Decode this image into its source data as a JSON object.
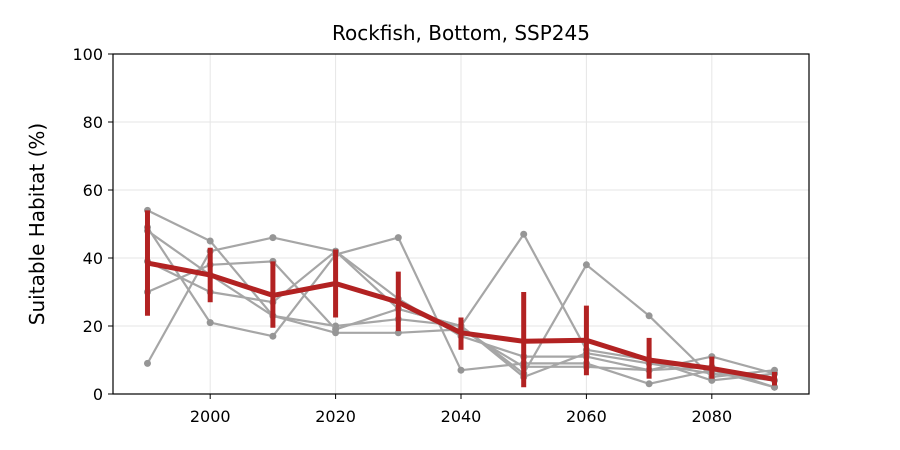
{
  "chart_data": {
    "type": "line",
    "title": "Rockfish, Bottom, SSP245",
    "xlabel": "",
    "ylabel": "Suitable Habitat (%)",
    "x": [
      1990,
      2000,
      2010,
      2020,
      2030,
      2040,
      2050,
      2060,
      2070,
      2080,
      2090
    ],
    "xlim": [
      1984.5,
      2095.5
    ],
    "ylim": [
      0,
      100
    ],
    "xticks": [
      2000,
      2020,
      2040,
      2060,
      2080
    ],
    "yticks": [
      0,
      20,
      40,
      60,
      80,
      100
    ],
    "grid": true,
    "series": [
      {
        "values": [
          54,
          45,
          23,
          20,
          22,
          20,
          5,
          12,
          9,
          6,
          4
        ],
        "color": "#a6a6a6"
      },
      {
        "values": [
          49,
          21,
          17,
          41,
          46,
          7,
          9,
          9,
          3,
          7,
          2
        ],
        "color": "#a6a6a6"
      },
      {
        "values": [
          30,
          38,
          39,
          19,
          25,
          20,
          47,
          13,
          10,
          4,
          6
        ],
        "color": "#a6a6a6"
      },
      {
        "values": [
          9,
          42,
          46,
          42,
          28,
          17,
          11,
          11,
          7,
          11,
          6
        ],
        "color": "#a6a6a6"
      },
      {
        "values": [
          39,
          30,
          27,
          42,
          25,
          20,
          6,
          38,
          23,
          5,
          7
        ],
        "color": "#a6a6a6"
      },
      {
        "values": [
          48,
          35,
          23,
          18,
          18,
          19,
          8,
          8,
          7,
          8,
          2
        ],
        "color": "#a6a6a6"
      }
    ],
    "mean": {
      "values": [
        38.5,
        35,
        29,
        32.5,
        27,
        18,
        15.5,
        15.8,
        10,
        7.5,
        4.3
      ],
      "err_low": [
        23,
        27,
        19.5,
        22.5,
        18.5,
        13,
        2,
        5.5,
        4.5,
        4.5,
        2.5
      ],
      "err_high": [
        54,
        43,
        39,
        42.5,
        36,
        22.5,
        30,
        26,
        16.5,
        11,
        6.5
      ],
      "color": "#b22222"
    }
  }
}
